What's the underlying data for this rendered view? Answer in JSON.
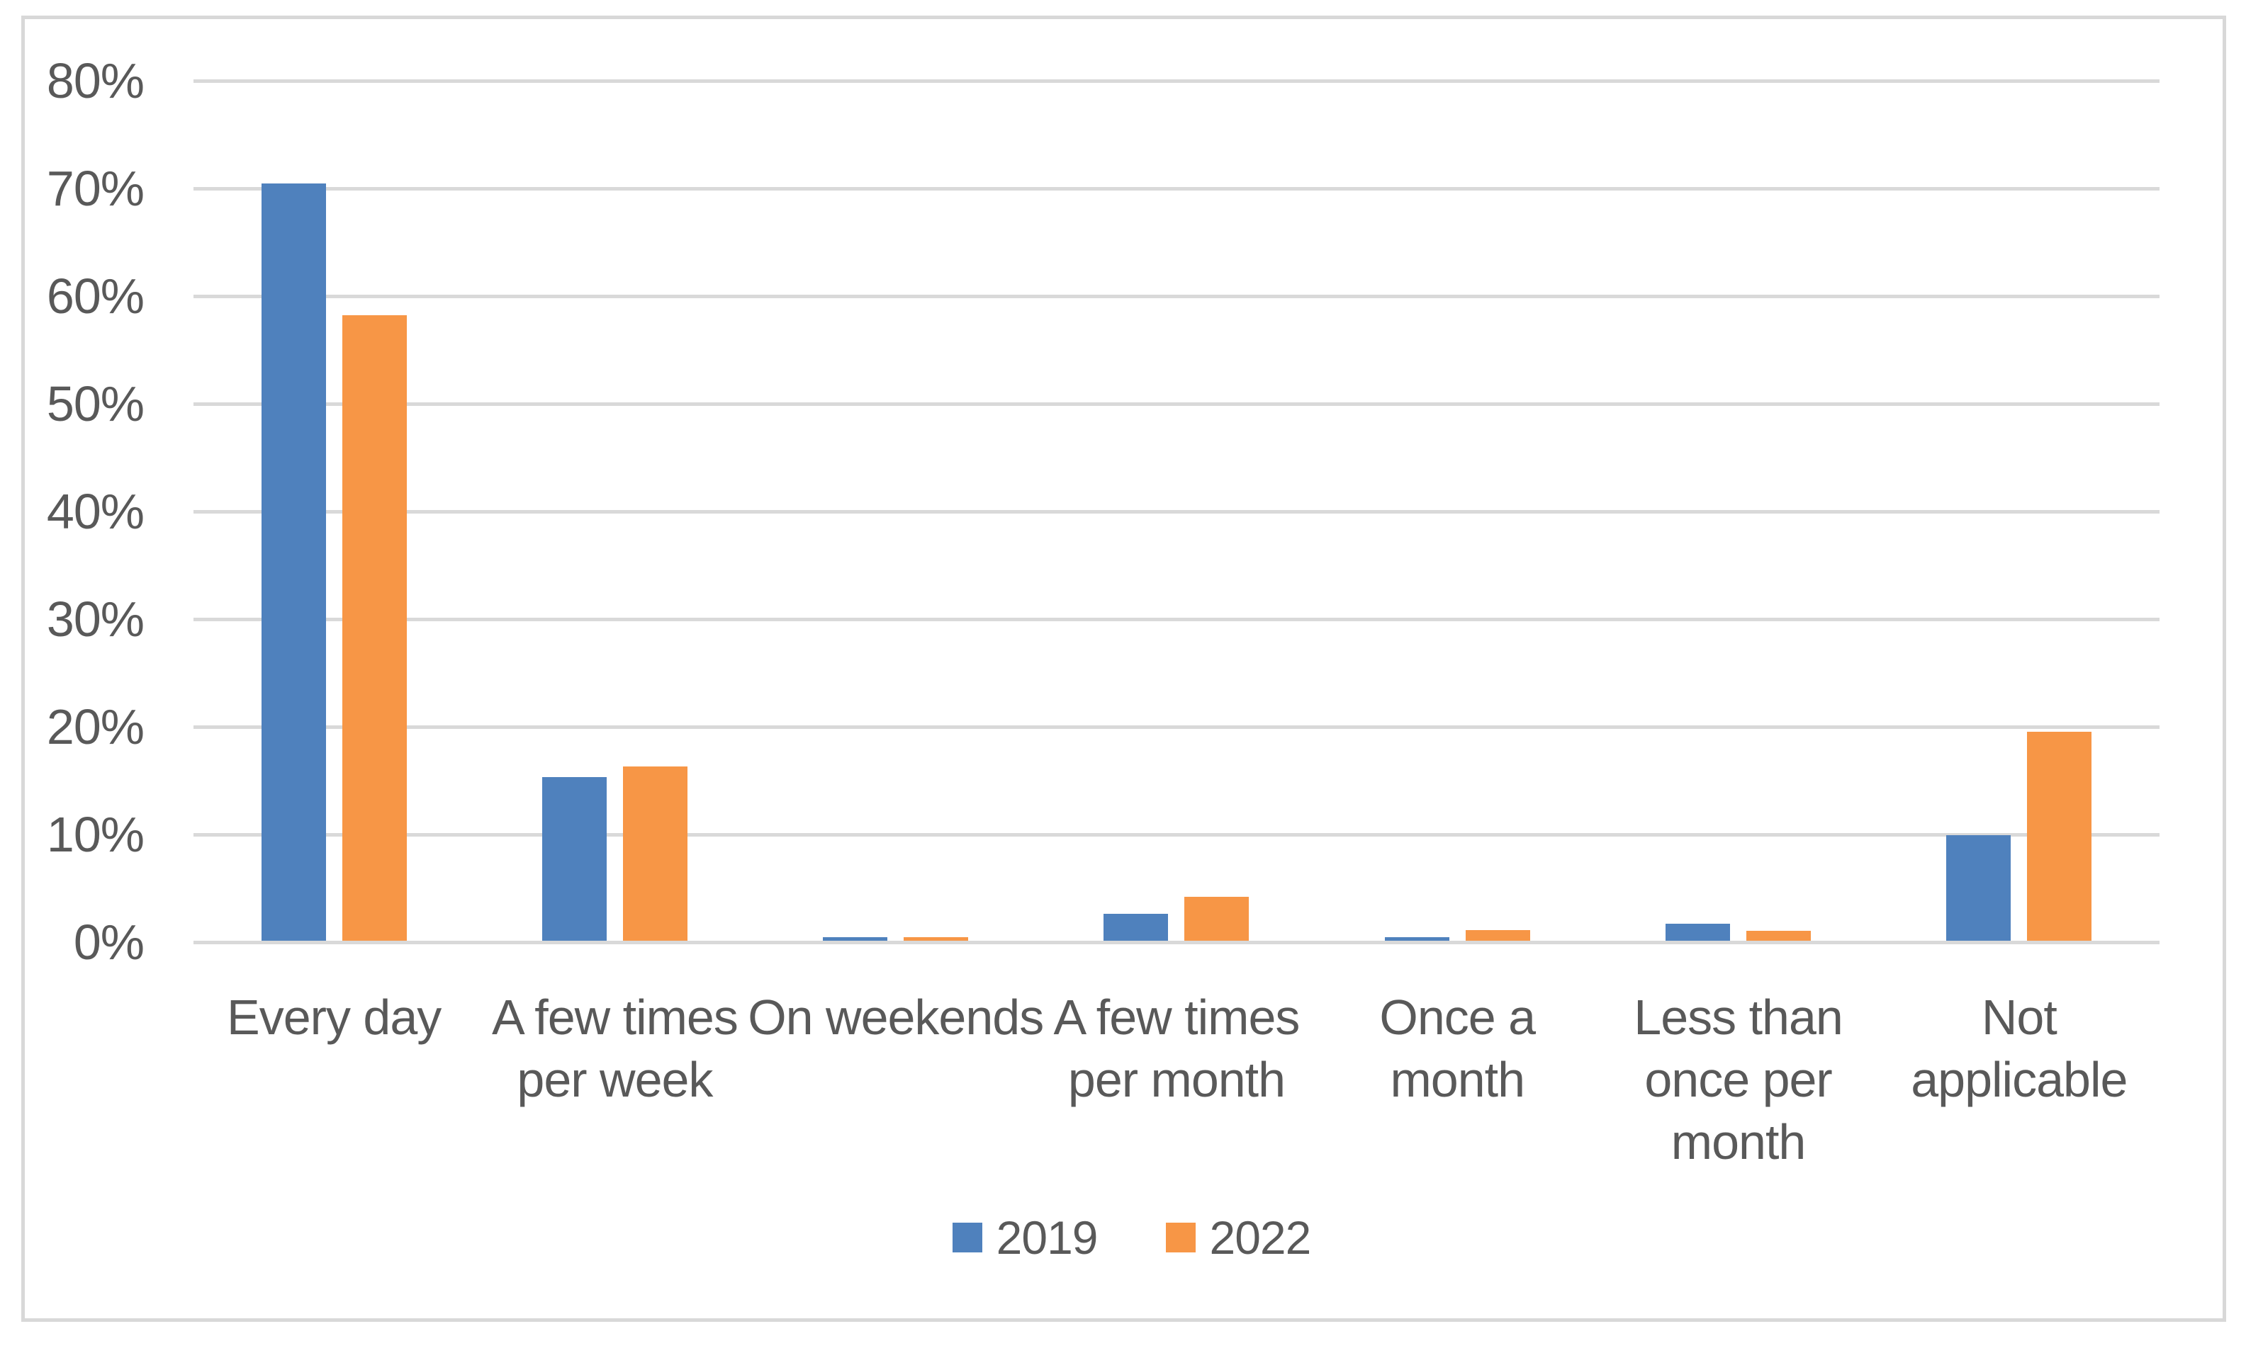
{
  "chart_data": {
    "type": "bar",
    "categories": [
      "Every day",
      "A few times\nper week",
      "On weekends",
      "A few times\nper month",
      "Once a\nmonth",
      "Less than\nonce per\nmonth",
      "Not\napplicable"
    ],
    "series": [
      {
        "name": "2019",
        "color": "#4F81BD",
        "values": [
          70.3,
          15.2,
          0.3,
          2.5,
          0.3,
          1.6,
          9.8
        ]
      },
      {
        "name": "2022",
        "color": "#F79646",
        "values": [
          58.1,
          16.2,
          0.3,
          4.1,
          1.0,
          0.9,
          19.4
        ]
      }
    ],
    "y_ticks": [
      "0%",
      "10%",
      "20%",
      "30%",
      "40%",
      "50%",
      "60%",
      "70%",
      "80%"
    ],
    "ylim": [
      0,
      80
    ],
    "grid": "horizontal",
    "legend_position": "bottom"
  },
  "colors": {
    "text": "#595959",
    "gridline": "#D9D9D9",
    "frame_border": "#D8D8D8",
    "background": "#FFFFFF"
  }
}
